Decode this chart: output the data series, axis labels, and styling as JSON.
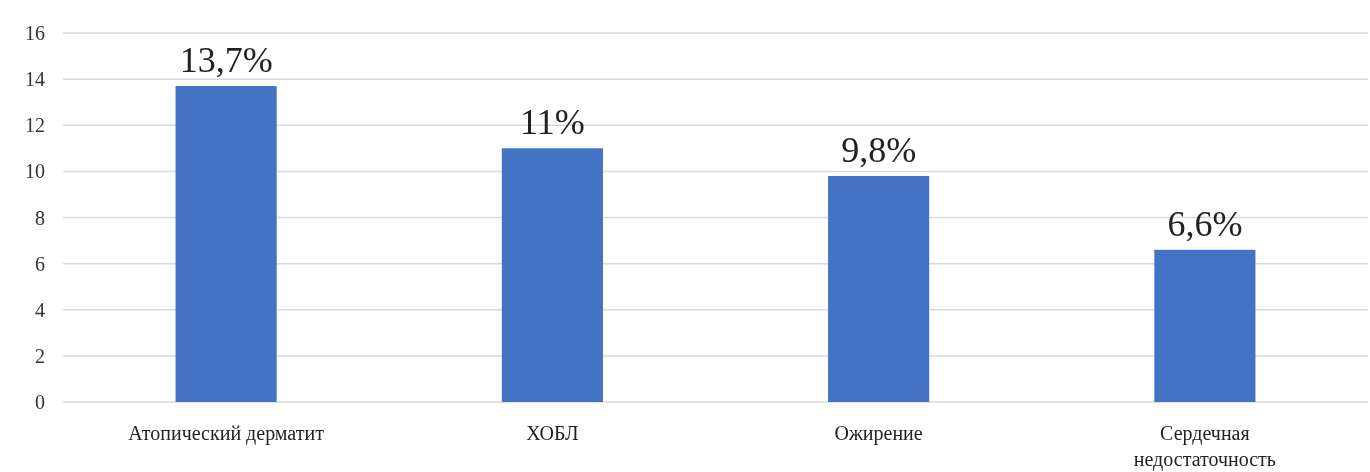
{
  "chart_data": {
    "type": "bar",
    "categories": [
      "Атопический дерматит",
      "ХОБЛ",
      "Ожирение",
      "Сердечная недостаточность"
    ],
    "values": [
      13.7,
      11,
      9.8,
      6.6
    ],
    "color": "#4472c4",
    "value_labels": [
      "13,7%",
      "11%",
      "9,8%",
      "6,6%"
    ],
    "ylim": [
      0,
      16
    ],
    "yticks": [
      0,
      2,
      4,
      6,
      8,
      10,
      12,
      14,
      16
    ],
    "grid": "y"
  }
}
